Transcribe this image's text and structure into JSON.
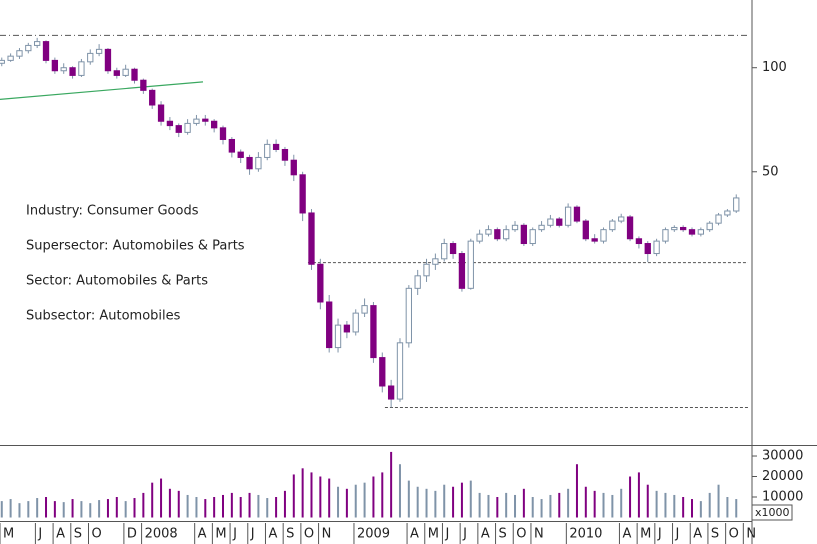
{
  "chart_data": {
    "type": "candlestick",
    "annotations": [
      "Industry: Consumer Goods",
      "Supersector: Automobiles & Parts",
      "Sector: Automobiles & Parts",
      "Subsector: Automobiles"
    ],
    "log_scale": true,
    "up_color": "#ffffff",
    "up_edge": "#7f93a8",
    "down_color": "#800080",
    "xlim": [
      0,
      42.49
    ],
    "xticks": [
      {
        "value": 0,
        "label": "M"
      },
      {
        "value": 2,
        "label": "J"
      },
      {
        "value": 3,
        "label": "A"
      },
      {
        "value": 4,
        "label": "S"
      },
      {
        "value": 5,
        "label": "O"
      },
      {
        "value": 7,
        "label": "D"
      },
      {
        "value": 8,
        "label": "2008"
      },
      {
        "value": 11,
        "label": "A"
      },
      {
        "value": 12,
        "label": "M"
      },
      {
        "value": 13,
        "label": "J"
      },
      {
        "value": 14,
        "label": "J"
      },
      {
        "value": 15,
        "label": "A"
      },
      {
        "value": 16,
        "label": "S"
      },
      {
        "value": 17,
        "label": "O"
      },
      {
        "value": 18,
        "label": "N"
      },
      {
        "value": 20,
        "label": "2009"
      },
      {
        "value": 23,
        "label": "A"
      },
      {
        "value": 24,
        "label": "M"
      },
      {
        "value": 25,
        "label": "J"
      },
      {
        "value": 26,
        "label": "J"
      },
      {
        "value": 27,
        "label": "A"
      },
      {
        "value": 28,
        "label": "S"
      },
      {
        "value": 29,
        "label": "O"
      },
      {
        "value": 30,
        "label": "N"
      },
      {
        "value": 32,
        "label": "2010"
      },
      {
        "value": 35,
        "label": "A"
      },
      {
        "value": 36,
        "label": "M"
      },
      {
        "value": 37,
        "label": "J"
      },
      {
        "value": 38,
        "label": "J"
      },
      {
        "value": 39,
        "label": "A"
      },
      {
        "value": 40,
        "label": "S"
      },
      {
        "value": 41,
        "label": "O"
      },
      {
        "value": 42,
        "label": "N"
      }
    ],
    "ylim": [
      8.1,
      157
    ],
    "yticks": [
      50,
      100
    ],
    "volume_lim": [
      0,
      34400
    ],
    "volume_ticks": [
      10000,
      20000,
      30000
    ],
    "volume_unit": "x1000",
    "reference_lines": [
      {
        "value": 124,
        "x_start": 0,
        "style": "dashdot"
      },
      {
        "value": 27.3,
        "x_start": 17.4,
        "style": "dashed"
      },
      {
        "value": 10.4,
        "x_start": 21.75,
        "style": "dashed"
      }
    ],
    "trend_line": {
      "x": [
        0,
        11.47
      ],
      "y": [
        81,
        91
      ],
      "color": "#3aa860"
    },
    "x": [
      0.1,
      0.6,
      1.1,
      1.6,
      2.1,
      2.6,
      3.1,
      3.6,
      4.1,
      4.6,
      5.1,
      5.6,
      6.1,
      6.6,
      7.1,
      7.6,
      8.1,
      8.6,
      9.1,
      9.6,
      10.1,
      10.6,
      11.1,
      11.6,
      12.1,
      12.6,
      13.1,
      13.6,
      14.1,
      14.6,
      15.1,
      15.6,
      16.1,
      16.6,
      17.1,
      17.6,
      18.1,
      18.6,
      19.1,
      19.6,
      20.1,
      20.6,
      21.1,
      21.6,
      22.1,
      22.6,
      23.1,
      23.6,
      24.1,
      24.6,
      25.1,
      25.6,
      26.1,
      26.6,
      27.1,
      27.6,
      28.1,
      28.6,
      29.1,
      29.6,
      30.1,
      30.6,
      31.1,
      31.6,
      32.1,
      32.6,
      33.1,
      33.6,
      34.1,
      34.6,
      35.1,
      35.6,
      36.1,
      36.6,
      37.1,
      37.6,
      38.1,
      38.6,
      39.1,
      39.6,
      40.1,
      40.6,
      41.1,
      41.6
    ],
    "candles": [
      [
        103,
        107,
        101,
        105
      ],
      [
        105,
        110,
        104,
        108
      ],
      [
        108,
        114,
        106,
        112
      ],
      [
        112,
        118,
        110,
        116
      ],
      [
        116,
        122,
        114,
        119
      ],
      [
        119,
        120,
        103,
        105
      ],
      [
        105,
        107,
        96,
        98
      ],
      [
        98,
        103,
        96,
        100
      ],
      [
        100,
        101,
        93,
        95
      ],
      [
        95,
        106,
        94,
        104
      ],
      [
        104,
        113,
        102,
        110
      ],
      [
        110,
        117,
        108,
        113
      ],
      [
        113,
        114,
        96,
        98
      ],
      [
        98,
        100,
        93,
        95
      ],
      [
        95,
        102,
        94,
        99
      ],
      [
        99,
        100,
        90,
        92
      ],
      [
        92,
        93,
        84,
        86
      ],
      [
        86,
        87,
        76,
        78
      ],
      [
        78,
        80,
        68,
        70
      ],
      [
        70,
        72,
        66,
        68
      ],
      [
        68,
        69,
        63,
        65
      ],
      [
        65,
        71,
        64,
        69
      ],
      [
        69,
        73,
        68,
        71
      ],
      [
        71,
        73,
        68,
        70
      ],
      [
        70,
        71,
        65,
        67
      ],
      [
        67,
        68,
        60,
        62
      ],
      [
        62,
        63,
        55,
        57
      ],
      [
        57,
        58,
        53,
        55
      ],
      [
        55,
        56,
        49,
        51
      ],
      [
        51,
        57,
        50,
        55
      ],
      [
        55,
        62,
        54,
        60
      ],
      [
        60,
        62,
        57,
        58
      ],
      [
        58,
        59,
        52,
        54
      ],
      [
        54,
        56,
        47,
        49
      ],
      [
        49,
        50,
        36,
        38
      ],
      [
        38,
        39,
        26,
        27
      ],
      [
        27,
        28,
        20,
        21
      ],
      [
        21,
        22,
        15,
        15.5
      ],
      [
        15.5,
        18.8,
        15,
        18
      ],
      [
        18,
        18.5,
        16.5,
        17.2
      ],
      [
        17.2,
        20,
        16.8,
        19.5
      ],
      [
        19.5,
        21.5,
        19,
        20.5
      ],
      [
        20.5,
        21,
        14,
        14.5
      ],
      [
        14.5,
        15,
        11.5,
        12
      ],
      [
        12,
        12.5,
        10.4,
        11
      ],
      [
        11,
        16.5,
        10.8,
        16
      ],
      [
        16,
        23.5,
        15.5,
        23
      ],
      [
        23,
        26,
        22,
        25
      ],
      [
        25,
        28,
        24,
        27
      ],
      [
        27,
        29,
        26,
        28
      ],
      [
        28,
        32,
        27.5,
        31
      ],
      [
        31,
        31.5,
        28,
        29
      ],
      [
        29,
        29.5,
        22.5,
        23
      ],
      [
        23,
        32,
        22.8,
        31.5
      ],
      [
        31.5,
        34,
        31,
        33
      ],
      [
        33,
        35,
        32.5,
        34
      ],
      [
        34,
        34.5,
        31.5,
        32
      ],
      [
        32,
        35,
        31.5,
        34
      ],
      [
        34,
        36,
        33.5,
        35
      ],
      [
        35,
        35.5,
        30.5,
        31
      ],
      [
        31,
        34.5,
        30.5,
        34
      ],
      [
        34,
        36,
        33.5,
        35
      ],
      [
        35,
        37.5,
        34.5,
        36.5
      ],
      [
        36.5,
        37,
        34.5,
        35
      ],
      [
        35,
        40.5,
        34.5,
        39.5
      ],
      [
        39.5,
        40,
        35.5,
        36
      ],
      [
        36,
        36.5,
        31.5,
        32
      ],
      [
        32,
        33,
        31,
        31.5
      ],
      [
        31.5,
        34.5,
        31,
        34
      ],
      [
        34,
        36.5,
        33.5,
        36
      ],
      [
        36,
        37.8,
        35.5,
        37
      ],
      [
        37,
        37.5,
        31.5,
        32
      ],
      [
        32,
        32.5,
        30,
        31
      ],
      [
        31,
        31.5,
        27.4,
        29
      ],
      [
        29,
        32,
        28.5,
        31.5
      ],
      [
        31.5,
        34.5,
        31,
        34
      ],
      [
        34,
        35,
        33.5,
        34.5
      ],
      [
        34.5,
        35,
        33.5,
        34
      ],
      [
        34,
        34.5,
        32.5,
        33
      ],
      [
        33,
        34.5,
        32.5,
        34
      ],
      [
        34,
        36,
        33.5,
        35.5
      ],
      [
        35.5,
        38,
        35,
        37.5
      ],
      [
        37.5,
        39,
        37,
        38.5
      ],
      [
        38.5,
        43,
        38,
        42
      ]
    ],
    "volume": [
      8000,
      9000,
      7000,
      8000,
      9500,
      10000,
      8000,
      7500,
      9000,
      8000,
      7000,
      8500,
      9000,
      10000,
      8000,
      9500,
      12000,
      17000,
      19000,
      14000,
      13000,
      11000,
      10000,
      9000,
      10000,
      11000,
      12000,
      10000,
      12000,
      11000,
      9500,
      10000,
      13000,
      21000,
      24000,
      22000,
      20000,
      19000,
      15000,
      14000,
      16000,
      17000,
      20000,
      22000,
      32000,
      26000,
      18000,
      15000,
      14000,
      13000,
      16000,
      15000,
      17000,
      18000,
      12000,
      11000,
      10000,
      12000,
      11000,
      14000,
      10000,
      9000,
      11000,
      12000,
      14000,
      26000,
      15000,
      13000,
      12000,
      11000,
      14000,
      20000,
      22000,
      16000,
      13000,
      12000,
      11000,
      10000,
      9000,
      8000,
      12000,
      16000,
      10000,
      9000
    ]
  }
}
